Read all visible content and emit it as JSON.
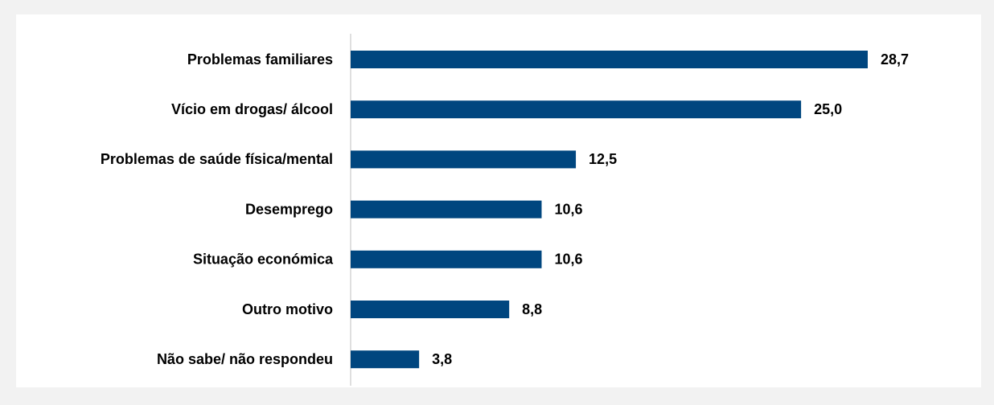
{
  "chart_data": {
    "type": "barh",
    "categories": [
      "Problemas familiares",
      "Vício em drogas/ álcool",
      "Problemas de saúde física/mental",
      "Desemprego",
      "Situação económica",
      "Outro motivo",
      "Não sabe/ não respondeu"
    ],
    "values": [
      28.7,
      25.0,
      12.5,
      10.6,
      10.6,
      8.8,
      3.8
    ],
    "value_labels": [
      "28,7",
      "25,0",
      "12,5",
      "10,6",
      "10,6",
      "8,8",
      "3,8"
    ],
    "color": "#00467f"
  }
}
